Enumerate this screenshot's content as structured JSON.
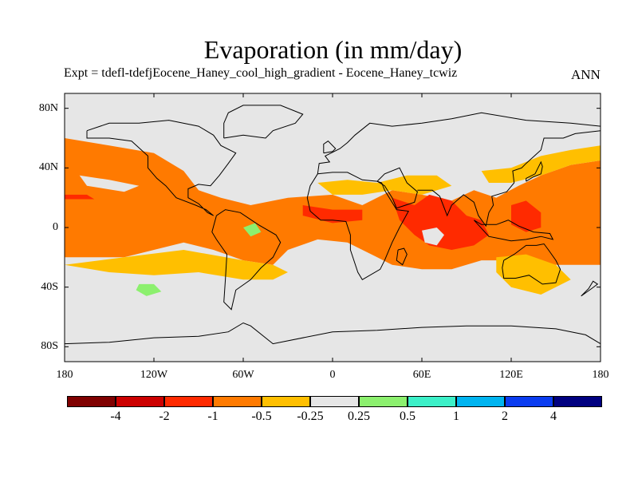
{
  "chart_data": {
    "type": "heatmap",
    "title": "Evaporation (in mm/day)",
    "subtitle": "Expt = tdefl-tdefjEocene_Haney_cool_high_gradient - Eocene_Haney_tcwiz",
    "season": "ANN",
    "x_ticks": [
      {
        "value": -180,
        "label": "180"
      },
      {
        "value": -120,
        "label": "120W"
      },
      {
        "value": -60,
        "label": "60W"
      },
      {
        "value": 0,
        "label": "0"
      },
      {
        "value": 60,
        "label": "60E"
      },
      {
        "value": 120,
        "label": "120E"
      },
      {
        "value": 180,
        "label": "180"
      }
    ],
    "y_ticks": [
      {
        "value": 80,
        "label": "80N"
      },
      {
        "value": 40,
        "label": "40N"
      },
      {
        "value": 0,
        "label": "0"
      },
      {
        "value": -40,
        "label": "40S"
      },
      {
        "value": -80,
        "label": "80S"
      }
    ],
    "xlim": [
      -180,
      180
    ],
    "ylim": [
      -90,
      90
    ],
    "levels": [
      "-4",
      "-2",
      "-1",
      "-0.5",
      "-0.25",
      "0.25",
      "0.5",
      "1",
      "2",
      "4"
    ],
    "colors": [
      "#7f0000",
      "#cc0000",
      "#ff2a00",
      "#ff7a00",
      "#ffbf00",
      "#e6e6e6",
      "#8cf06e",
      "#3cf0c8",
      "#00b4f0",
      "#0a3cf0",
      "#000080"
    ],
    "regions": [
      {
        "level": "-0.5",
        "color": "#ff7a00",
        "points": [
          [
            -180,
            60
          ],
          [
            -150,
            55
          ],
          [
            -120,
            50
          ],
          [
            -100,
            38
          ],
          [
            -90,
            25
          ],
          [
            -75,
            20
          ],
          [
            -55,
            15
          ],
          [
            -30,
            20
          ],
          [
            0,
            22
          ],
          [
            20,
            15
          ],
          [
            40,
            25
          ],
          [
            60,
            22
          ],
          [
            80,
            18
          ],
          [
            95,
            25
          ],
          [
            110,
            20
          ],
          [
            125,
            28
          ],
          [
            140,
            35
          ],
          [
            160,
            42
          ],
          [
            180,
            45
          ],
          [
            180,
            -25
          ],
          [
            160,
            -25
          ],
          [
            140,
            -25
          ],
          [
            120,
            -22
          ],
          [
            100,
            -22
          ],
          [
            80,
            -28
          ],
          [
            60,
            -28
          ],
          [
            40,
            -25
          ],
          [
            30,
            -20
          ],
          [
            10,
            -10
          ],
          [
            -10,
            -8
          ],
          [
            -30,
            -15
          ],
          [
            -40,
            -25
          ],
          [
            -60,
            -22
          ],
          [
            -80,
            -15
          ],
          [
            -100,
            -10
          ],
          [
            -120,
            -15
          ],
          [
            -140,
            -20
          ],
          [
            -160,
            -20
          ],
          [
            -180,
            -20
          ]
        ]
      },
      {
        "level": "-1",
        "color": "#ff2a00",
        "points": [
          [
            40,
            20
          ],
          [
            55,
            15
          ],
          [
            65,
            22
          ],
          [
            80,
            18
          ],
          [
            90,
            8
          ],
          [
            100,
            5
          ],
          [
            105,
            -5
          ],
          [
            95,
            -12
          ],
          [
            80,
            -15
          ],
          [
            65,
            -12
          ],
          [
            55,
            -5
          ],
          [
            45,
            5
          ]
        ]
      },
      {
        "level": "-1",
        "color": "#ff2a00",
        "points": [
          [
            -20,
            15
          ],
          [
            0,
            12
          ],
          [
            20,
            12
          ],
          [
            20,
            5
          ],
          [
            0,
            3
          ],
          [
            -20,
            8
          ]
        ]
      },
      {
        "level": "-1",
        "color": "#ff2a00",
        "points": [
          [
            120,
            15
          ],
          [
            130,
            18
          ],
          [
            140,
            10
          ],
          [
            140,
            0
          ],
          [
            130,
            -3
          ],
          [
            120,
            2
          ]
        ]
      },
      {
        "level": "-1",
        "color": "#ff2a00",
        "points": [
          [
            -180,
            22
          ],
          [
            -165,
            22
          ],
          [
            -160,
            19
          ],
          [
            -180,
            19
          ]
        ]
      },
      {
        "level": "-0.25",
        "color": "#ffbf00",
        "points": [
          [
            110,
            -20
          ],
          [
            130,
            -18
          ],
          [
            150,
            -25
          ],
          [
            160,
            -35
          ],
          [
            140,
            -45
          ],
          [
            120,
            -40
          ],
          [
            110,
            -30
          ]
        ]
      },
      {
        "level": "-0.25",
        "color": "#ffbf00",
        "points": [
          [
            -180,
            -25
          ],
          [
            -150,
            -30
          ],
          [
            -120,
            -32
          ],
          [
            -90,
            -30
          ],
          [
            -60,
            -35
          ],
          [
            -40,
            -35
          ],
          [
            -30,
            -30
          ],
          [
            -40,
            -25
          ],
          [
            -60,
            -22
          ],
          [
            -100,
            -15
          ],
          [
            -140,
            -20
          ]
        ]
      },
      {
        "level": "-0.25",
        "color": "#ffbf00",
        "points": [
          [
            100,
            38
          ],
          [
            120,
            40
          ],
          [
            140,
            48
          ],
          [
            160,
            52
          ],
          [
            180,
            55
          ],
          [
            180,
            45
          ],
          [
            160,
            42
          ],
          [
            140,
            35
          ],
          [
            120,
            30
          ],
          [
            105,
            30
          ]
        ]
      },
      {
        "level": "-0.25",
        "color": "#ffbf00",
        "points": [
          [
            -10,
            30
          ],
          [
            10,
            32
          ],
          [
            30,
            30
          ],
          [
            50,
            35
          ],
          [
            70,
            35
          ],
          [
            80,
            28
          ],
          [
            60,
            22
          ],
          [
            40,
            25
          ],
          [
            20,
            22
          ],
          [
            0,
            22
          ]
        ]
      },
      {
        "level": "0.25",
        "color": "#e6e6e6",
        "points": [
          [
            -170,
            35
          ],
          [
            -150,
            32
          ],
          [
            -130,
            28
          ],
          [
            -140,
            24
          ],
          [
            -165,
            28
          ]
        ]
      },
      {
        "level": "0.25",
        "color": "#e6e6e6",
        "points": [
          [
            60,
            -2
          ],
          [
            70,
            0
          ],
          [
            75,
            -5
          ],
          [
            70,
            -12
          ],
          [
            62,
            -10
          ]
        ]
      },
      {
        "level": "0.5",
        "color": "#8cf06e",
        "points": [
          [
            -130,
            -38
          ],
          [
            -120,
            -38
          ],
          [
            -115,
            -43
          ],
          [
            -125,
            -46
          ],
          [
            -132,
            -42
          ]
        ]
      },
      {
        "level": "0.5",
        "color": "#8cf06e",
        "points": [
          [
            -60,
            0
          ],
          [
            -52,
            3
          ],
          -48,
          [
            -48,
            -3
          ],
          [
            -55,
            -6
          ]
        ]
      }
    ],
    "legend_labels": [
      "-4",
      "-2",
      "-1",
      "-0.5",
      "-0.25",
      "0.25",
      "0.5",
      "1",
      "2",
      "4"
    ]
  }
}
